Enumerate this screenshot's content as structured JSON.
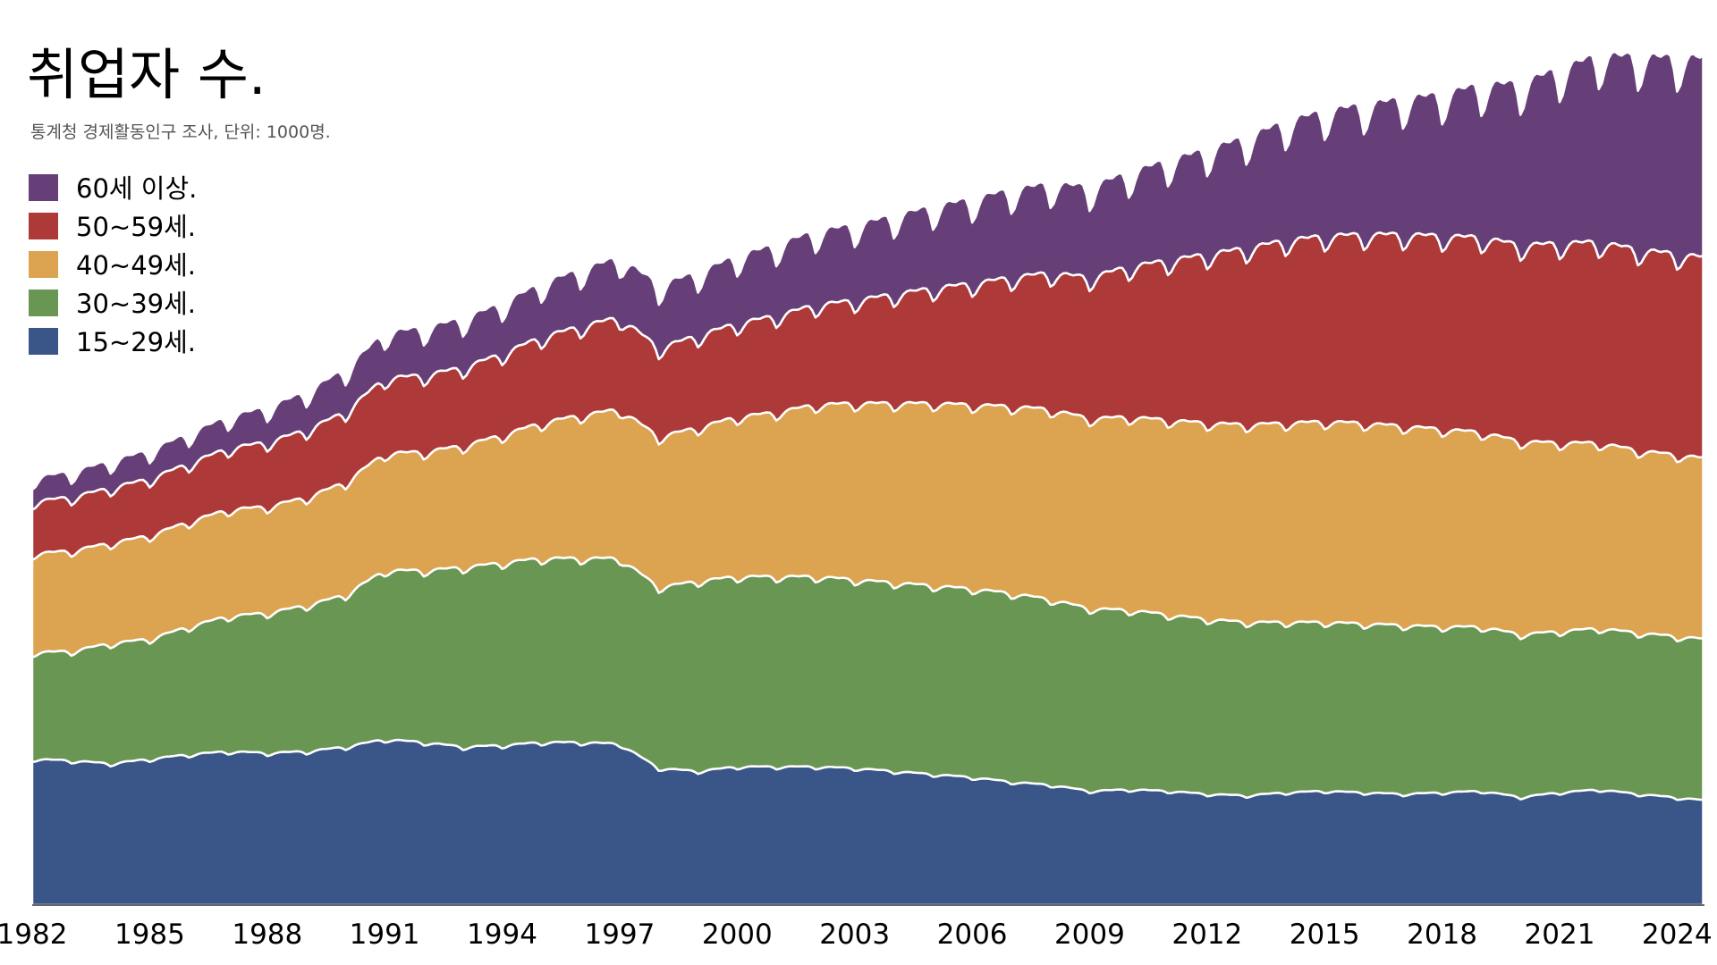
{
  "chart_data": {
    "type": "area",
    "stacked": true,
    "title": "취업자 수.",
    "subtitle": "통계청 경제활동인구 조사, 단위: 1000명.",
    "xlabel": "",
    "ylabel": "",
    "xlim": [
      1982,
      2024.7
    ],
    "ylim": [
      0,
      29000
    ],
    "x_ticks": [
      "1982",
      "1985",
      "1988",
      "1991",
      "1994",
      "1997",
      "2000",
      "2003",
      "2006",
      "2009",
      "2012",
      "2015",
      "2018",
      "2021",
      "2024"
    ],
    "grid": false,
    "legend_position": "top-left",
    "seasonality": "monthly values; seasonal dip every January, peaks mid-year (largest swings in 60+ and 50~59 groups)",
    "series": [
      {
        "name": "15~29세.",
        "color": "#3a5689",
        "x": [
          1982,
          1983,
          1984,
          1985,
          1986,
          1987,
          1988,
          1989,
          1990,
          1991,
          1992,
          1993,
          1994,
          1995,
          1996,
          1997,
          1998,
          1999,
          2000,
          2001,
          2002,
          2003,
          2004,
          2005,
          2006,
          2007,
          2008,
          2009,
          2010,
          2011,
          2012,
          2013,
          2014,
          2015,
          2016,
          2017,
          2018,
          2019,
          2020,
          2021,
          2022,
          2023,
          2024.7
        ],
        "values": [
          4800,
          4750,
          4650,
          4800,
          4950,
          5050,
          5000,
          5050,
          5200,
          5450,
          5350,
          5200,
          5250,
          5350,
          5350,
          5300,
          4500,
          4400,
          4550,
          4550,
          4550,
          4500,
          4400,
          4300,
          4200,
          4050,
          3950,
          3750,
          3800,
          3750,
          3650,
          3600,
          3700,
          3750,
          3700,
          3650,
          3700,
          3750,
          3550,
          3700,
          3800,
          3650,
          3450
        ]
      },
      {
        "name": "30~39세.",
        "color": "#6a9654",
        "x": [
          1982,
          1983,
          1984,
          1985,
          1986,
          1987,
          1988,
          1989,
          1990,
          1991,
          1992,
          1993,
          1994,
          1995,
          1996,
          1997,
          1998,
          1999,
          2000,
          2001,
          2002,
          2003,
          2004,
          2005,
          2006,
          2007,
          2008,
          2009,
          2010,
          2011,
          2012,
          2013,
          2014,
          2015,
          2016,
          2017,
          2018,
          2019,
          2020,
          2021,
          2022,
          2023,
          2024.7
        ],
        "values": [
          3500,
          3600,
          3950,
          3950,
          4200,
          4450,
          4600,
          4800,
          5000,
          5550,
          5650,
          5900,
          6000,
          6050,
          6050,
          6100,
          5950,
          6250,
          6250,
          6250,
          6250,
          6200,
          6200,
          6200,
          6200,
          6200,
          6100,
          6000,
          5900,
          5800,
          5750,
          5700,
          5600,
          5550,
          5550,
          5550,
          5450,
          5400,
          5350,
          5300,
          5300,
          5300,
          5300
        ]
      },
      {
        "name": "40~49세.",
        "color": "#dca351",
        "x": [
          1982,
          1983,
          1984,
          1985,
          1986,
          1987,
          1988,
          1989,
          1990,
          1991,
          1992,
          1993,
          1994,
          1995,
          1996,
          1997,
          1998,
          1999,
          2000,
          2001,
          2002,
          2003,
          2004,
          2005,
          2006,
          2007,
          2008,
          2009,
          2010,
          2011,
          2012,
          2013,
          2014,
          2015,
          2016,
          2017,
          2018,
          2019,
          2020,
          2021,
          2022,
          2023,
          2024.7
        ],
        "values": [
          3250,
          3300,
          3300,
          3400,
          3450,
          3500,
          3500,
          3550,
          3700,
          3850,
          3900,
          4000,
          4200,
          4450,
          4700,
          4900,
          4950,
          5050,
          5250,
          5400,
          5650,
          5800,
          5900,
          6000,
          6050,
          6150,
          6250,
          6250,
          6350,
          6400,
          6450,
          6500,
          6550,
          6600,
          6600,
          6550,
          6500,
          6400,
          6350,
          6200,
          6100,
          6000,
          5950
        ]
      },
      {
        "name": "50~59세.",
        "color": "#ad3a38",
        "x": [
          1982,
          1983,
          1984,
          1985,
          1986,
          1987,
          1988,
          1989,
          1990,
          1991,
          1992,
          1993,
          1994,
          1995,
          1996,
          1997,
          1998,
          1999,
          2000,
          2001,
          2002,
          2003,
          2004,
          2005,
          2006,
          2007,
          2008,
          2009,
          2010,
          2011,
          2012,
          2013,
          2014,
          2015,
          2016,
          2017,
          2018,
          2019,
          2020,
          2021,
          2022,
          2023,
          2024.7
        ],
        "values": [
          1700,
          1750,
          1800,
          1850,
          1900,
          2000,
          2100,
          2200,
          2300,
          2450,
          2500,
          2550,
          2650,
          2800,
          2900,
          3000,
          2900,
          3000,
          3050,
          3150,
          3250,
          3350,
          3550,
          3750,
          3950,
          4200,
          4450,
          4600,
          4900,
          5200,
          5500,
          5750,
          5950,
          6050,
          6150,
          6250,
          6300,
          6350,
          6400,
          6500,
          6550,
          6550,
          6550
        ]
      },
      {
        "name": "60세 이상.",
        "color": "#673f78",
        "x": [
          1982,
          1983,
          1984,
          1985,
          1986,
          1987,
          1988,
          1989,
          1990,
          1991,
          1992,
          1993,
          1994,
          1995,
          1996,
          1997,
          1998,
          1999,
          2000,
          2001,
          2002,
          2003,
          2004,
          2005,
          2006,
          2007,
          2008,
          2009,
          2010,
          2011,
          2012,
          2013,
          2014,
          2015,
          2016,
          2017,
          2018,
          2019,
          2020,
          2021,
          2022,
          2023,
          2024.7
        ],
        "values": [
          750,
          800,
          850,
          900,
          950,
          1000,
          1100,
          1200,
          1350,
          1450,
          1500,
          1550,
          1600,
          1700,
          1800,
          1900,
          2000,
          2000,
          2150,
          2250,
          2350,
          2400,
          2500,
          2600,
          2700,
          2800,
          2850,
          2900,
          3000,
          3200,
          3350,
          3550,
          3800,
          4000,
          4150,
          4350,
          4550,
          4900,
          5200,
          5600,
          6000,
          6200,
          6400
        ]
      }
    ]
  }
}
